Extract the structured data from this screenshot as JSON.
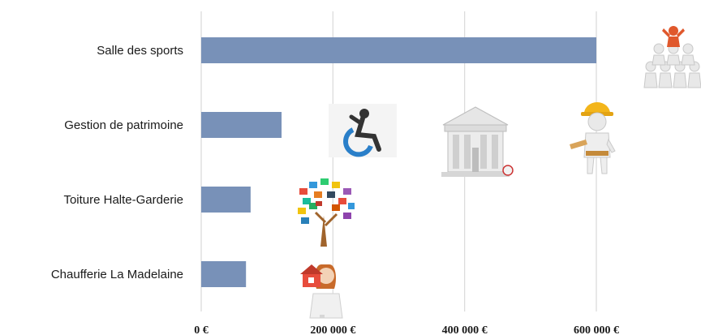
{
  "chart_data": {
    "type": "bar",
    "orientation": "horizontal",
    "categories": [
      "Salle des sports",
      "Gestion de patrimoine",
      "Toiture Halte-Garderie",
      "Chaufferie La Madelaine"
    ],
    "values": [
      600000,
      122000,
      75000,
      68000
    ],
    "xlim": [
      0,
      600000
    ],
    "xticks": [
      0,
      200000,
      400000,
      600000
    ],
    "xtick_labels": [
      "0 €",
      "200 000 €",
      "400 000 €",
      "600 000 €"
    ],
    "grid": "vertical",
    "bar_color": "#7891b8",
    "grid_color": "#d9d9d9"
  },
  "illustrations": [
    "people-pyramid-icon",
    "wheelchair-accessibility-icon",
    "public-building-icon",
    "construction-worker-icon",
    "knowledge-tree-icon",
    "real-estate-agent-icon"
  ]
}
